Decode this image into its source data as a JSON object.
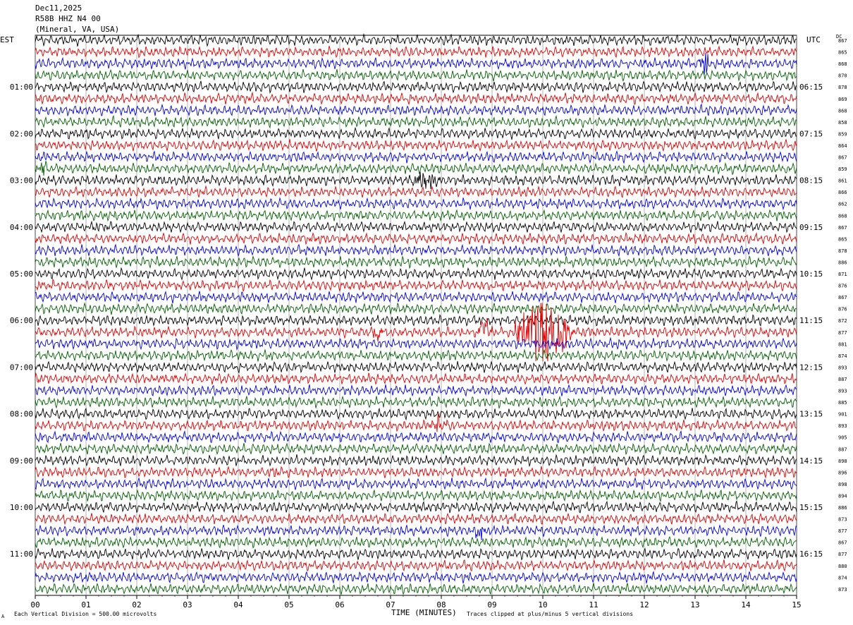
{
  "header": {
    "date": "Dec11,2025",
    "station": "R58B HHZ N4 00",
    "location": "(Mineral, VA, USA)"
  },
  "labels": {
    "left_timezone": "EST",
    "right_timezone": "UTC",
    "dc_header": "DC"
  },
  "footer": {
    "scale_note": "Each Vertical Division =  500.00 microvolts",
    "x_axis_label": "TIME (MINUTES)",
    "clip_note": "Traces clipped at plus/minus 5 vertical divisions",
    "corner_mark": "A"
  },
  "colors": {
    "trace_cycle": [
      "#000000",
      "#e00000",
      "#0000e0",
      "#006000"
    ],
    "grid": "#808080",
    "axis": "#000000"
  },
  "chart_data": {
    "type": "line",
    "subtype": "helicorder",
    "x_range": [
      0,
      15
    ],
    "x_tick_labels": [
      "00",
      "01",
      "02",
      "03",
      "04",
      "05",
      "06",
      "07",
      "08",
      "09",
      "10",
      "11",
      "12",
      "13",
      "14",
      "15"
    ],
    "minutes_per_line": 15,
    "line_count": 48,
    "left_hour_labels": [
      {
        "line": 4,
        "text": "01:00"
      },
      {
        "line": 8,
        "text": "02:00"
      },
      {
        "line": 12,
        "text": "03:00"
      },
      {
        "line": 16,
        "text": "04:00"
      },
      {
        "line": 20,
        "text": "05:00"
      },
      {
        "line": 24,
        "text": "06:00"
      },
      {
        "line": 28,
        "text": "07:00"
      },
      {
        "line": 32,
        "text": "08:00"
      },
      {
        "line": 36,
        "text": "09:00"
      },
      {
        "line": 40,
        "text": "10:00"
      },
      {
        "line": 44,
        "text": "11:00"
      }
    ],
    "right_hour_labels": [
      {
        "line": 4,
        "text": "06:15"
      },
      {
        "line": 8,
        "text": "07:15"
      },
      {
        "line": 12,
        "text": "08:15"
      },
      {
        "line": 16,
        "text": "09:15"
      },
      {
        "line": 20,
        "text": "10:15"
      },
      {
        "line": 24,
        "text": "11:15"
      },
      {
        "line": 28,
        "text": "12:15"
      },
      {
        "line": 32,
        "text": "13:15"
      },
      {
        "line": 36,
        "text": "14:15"
      },
      {
        "line": 40,
        "text": "15:15"
      },
      {
        "line": 44,
        "text": "16:15"
      }
    ],
    "dc_values": [
      "867",
      "865",
      "868",
      "870",
      "878",
      "869",
      "868",
      "858",
      "859",
      "864",
      "867",
      "859",
      "861",
      "866",
      "862",
      "868",
      "867",
      "865",
      "878",
      "886",
      "871",
      "876",
      "867",
      "876",
      "872",
      "877",
      "881",
      "874",
      "893",
      "887",
      "893",
      "885",
      "901",
      "893",
      "905",
      "887",
      "898",
      "896",
      "898",
      "894",
      "886",
      "873",
      "877",
      "867",
      "877",
      "880",
      "874",
      "873"
    ],
    "events": [
      {
        "line": 2,
        "minute": 13.2,
        "amplitude": 2.2,
        "width_min": 0.15
      },
      {
        "line": 11,
        "minute": 0.15,
        "amplitude": 1.4,
        "width_min": 0.2
      },
      {
        "line": 12,
        "minute": 7.7,
        "amplitude": 1.8,
        "width_min": 0.3
      },
      {
        "line": 25,
        "minute": 10.0,
        "amplitude": 7.0,
        "width_min": 0.6
      },
      {
        "line": 25,
        "minute": 8.85,
        "amplitude": 2.5,
        "width_min": 0.2
      },
      {
        "line": 25,
        "minute": 9.75,
        "amplitude": 3.0,
        "width_min": 0.4
      },
      {
        "line": 25,
        "minute": 10.45,
        "amplitude": 2.0,
        "width_min": 0.2
      },
      {
        "line": 25,
        "minute": 6.75,
        "amplitude": 1.2,
        "width_min": 0.15
      },
      {
        "line": 33,
        "minute": 7.95,
        "amplitude": 1.6,
        "width_min": 0.25
      },
      {
        "line": 42,
        "minute": 8.75,
        "amplitude": 1.3,
        "width_min": 0.15
      }
    ]
  }
}
